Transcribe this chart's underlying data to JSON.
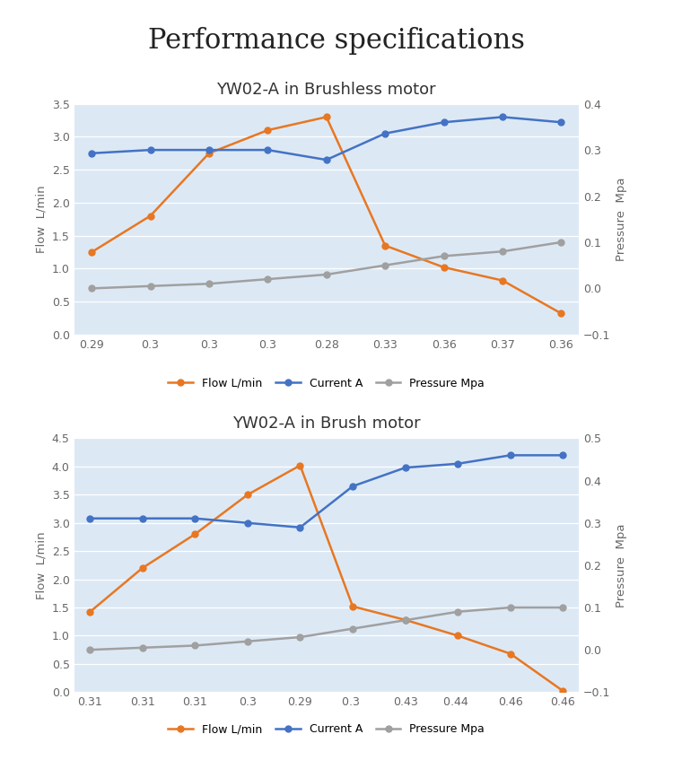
{
  "main_title": "Performance specifications",
  "main_title_fontsize": 22,
  "chart1": {
    "title": "YW02-A in Brushless motor",
    "title_fontsize": 13,
    "x_labels": [
      "0.29",
      "0.3",
      "0.3",
      "0.3",
      "0.28",
      "0.33",
      "0.36",
      "0.37",
      "0.36"
    ],
    "flow": [
      1.25,
      1.8,
      2.75,
      3.1,
      3.3,
      1.35,
      1.02,
      0.82,
      0.32
    ],
    "current": [
      2.75,
      2.8,
      2.8,
      2.8,
      2.65,
      3.05,
      3.22,
      3.3,
      3.22
    ],
    "pressure_mpa": [
      0.0,
      0.005,
      0.01,
      0.02,
      0.03,
      0.05,
      0.07,
      0.08,
      0.1
    ],
    "yleft_min": 0,
    "yleft_max": 3.5,
    "yright_min": -0.1,
    "yright_max": 0.4,
    "ylabel_left": "Flow  L/min",
    "ylabel_right": "Pressure  Mpa"
  },
  "chart2": {
    "title": "YW02-A in Brush motor",
    "title_fontsize": 13,
    "x_labels": [
      "0.31",
      "0.31",
      "0.31",
      "0.3",
      "0.29",
      "0.3 ",
      "0.43",
      "0.44 ",
      "0.46",
      "0.46"
    ],
    "flow": [
      1.42,
      2.2,
      2.8,
      3.5,
      4.02,
      1.52,
      1.28,
      1.0,
      0.68,
      0.02
    ],
    "current": [
      3.08,
      3.08,
      3.08,
      3.0,
      2.92,
      3.65,
      3.98,
      4.05,
      4.2,
      4.2
    ],
    "pressure_mpa": [
      0.0,
      0.005,
      0.01,
      0.02,
      0.03,
      0.05,
      0.07,
      0.09,
      0.1,
      0.1
    ],
    "yleft_min": 0,
    "yleft_max": 4.5,
    "yright_min": -0.1,
    "yright_max": 0.5,
    "ylabel_left": "Flow  L/min",
    "ylabel_right": "Pressure  Mpa"
  },
  "flow_color": "#E87722",
  "current_color": "#4472C4",
  "pressure_color": "#A0A0A0",
  "bg_color": "#DCE9F5",
  "outer_bg": "#FFFFFF",
  "legend_labels": [
    "Flow L/min",
    "Current A",
    "Pressure Mpa"
  ],
  "marker": "o",
  "markersize": 5,
  "linewidth": 1.8
}
